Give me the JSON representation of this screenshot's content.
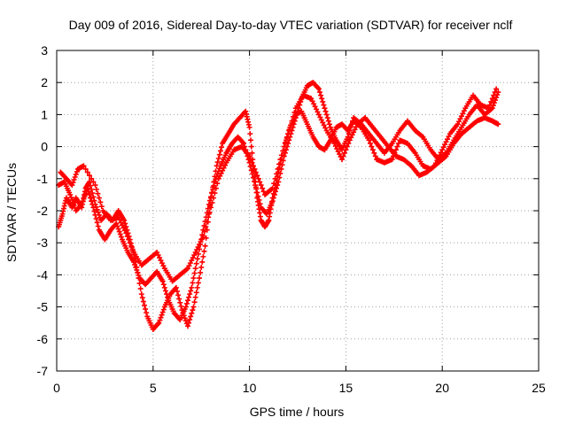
{
  "chart_data": {
    "type": "scatter",
    "title": "Day 009 of 2016, Sidereal Day-to-day VTEC variation (SDTVAR) for receiver nclf",
    "xlabel": "GPS time / hours",
    "ylabel": "SDTVAR / TECUs",
    "xlim": [
      0,
      25
    ],
    "ylim": [
      -7,
      3
    ],
    "xticks": [
      0,
      5,
      10,
      15,
      20,
      25
    ],
    "yticks": [
      -7,
      -6,
      -5,
      -4,
      -3,
      -2,
      -1,
      0,
      1,
      2,
      3
    ],
    "grid": true,
    "marker": "+",
    "colors": {
      "series": "#ff0000",
      "grid": "#a0a0a0",
      "axis": "#000000"
    },
    "series": [
      {
        "points": [
          [
            0.1,
            -2.5
          ],
          [
            0.3,
            -2.1
          ],
          [
            0.5,
            -1.6
          ],
          [
            0.8,
            -1.9
          ],
          [
            1.0,
            -1.6
          ],
          [
            1.3,
            -1.9
          ],
          [
            1.5,
            -1.3
          ],
          [
            1.7,
            -1.1
          ],
          [
            2.0,
            -1.8
          ],
          [
            2.3,
            -2.3
          ],
          [
            2.6,
            -2.1
          ],
          [
            2.9,
            -2.3
          ],
          [
            3.2,
            -2.0
          ],
          [
            3.5,
            -2.3
          ],
          [
            3.8,
            -2.9
          ],
          [
            4.1,
            -3.6
          ],
          [
            4.4,
            -4.6
          ],
          [
            4.7,
            -5.3
          ],
          [
            5.0,
            -5.7
          ],
          [
            5.3,
            -5.5
          ],
          [
            5.6,
            -5.0
          ],
          [
            5.9,
            -4.6
          ],
          [
            6.2,
            -4.4
          ],
          [
            6.5,
            -5.1
          ],
          [
            6.8,
            -5.6
          ],
          [
            7.1,
            -5.0
          ],
          [
            7.4,
            -4.1
          ],
          [
            7.7,
            -3.1
          ],
          [
            8.0,
            -1.6
          ],
          [
            8.3,
            -0.6
          ],
          [
            8.6,
            0.1
          ],
          [
            8.9,
            0.4
          ],
          [
            9.2,
            0.7
          ],
          [
            9.5,
            0.9
          ],
          [
            9.8,
            1.1
          ],
          [
            10.0,
            0.6
          ],
          [
            10.2,
            -0.6
          ],
          [
            10.4,
            -1.6
          ],
          [
            10.6,
            -2.3
          ],
          [
            10.8,
            -2.5
          ],
          [
            11.0,
            -2.3
          ],
          [
            11.2,
            -1.6
          ],
          [
            11.5,
            -0.8
          ],
          [
            11.8,
            0.0
          ],
          [
            12.1,
            0.6
          ],
          [
            12.4,
            1.0
          ],
          [
            12.7,
            1.1
          ],
          [
            13.0,
            0.7
          ],
          [
            13.3,
            0.3
          ],
          [
            13.6,
            0.0
          ],
          [
            13.9,
            -0.1
          ],
          [
            14.2,
            0.2
          ],
          [
            14.5,
            0.6
          ],
          [
            14.8,
            0.7
          ],
          [
            15.1,
            0.5
          ],
          [
            15.4,
            0.8
          ],
          [
            15.8,
            0.6
          ],
          [
            16.2,
            0.2
          ],
          [
            16.6,
            -0.4
          ],
          [
            17.0,
            -0.5
          ],
          [
            17.4,
            -0.4
          ],
          [
            17.8,
            0.2
          ],
          [
            18.2,
            0.1
          ],
          [
            18.6,
            -0.2
          ],
          [
            19.0,
            -0.6
          ],
          [
            19.4,
            -0.7
          ],
          [
            19.8,
            -0.5
          ],
          [
            20.2,
            -0.3
          ],
          [
            20.6,
            0.1
          ],
          [
            21.0,
            0.4
          ],
          [
            21.4,
            0.6
          ],
          [
            21.8,
            0.8
          ],
          [
            22.2,
            0.9
          ],
          [
            22.6,
            0.8
          ],
          [
            22.9,
            0.7
          ]
        ]
      },
      {
        "points": [
          [
            0.1,
            -1.2
          ],
          [
            0.4,
            -1.1
          ],
          [
            0.7,
            -1.5
          ],
          [
            1.0,
            -2.0
          ],
          [
            1.3,
            -1.8
          ],
          [
            1.6,
            -1.3
          ],
          [
            1.9,
            -1.9
          ],
          [
            2.2,
            -2.6
          ],
          [
            2.5,
            -2.9
          ],
          [
            2.8,
            -2.6
          ],
          [
            3.1,
            -2.4
          ],
          [
            3.4,
            -2.9
          ],
          [
            3.7,
            -3.3
          ],
          [
            4.0,
            -3.6
          ],
          [
            4.3,
            -4.1
          ],
          [
            4.6,
            -4.3
          ],
          [
            4.9,
            -4.1
          ],
          [
            5.2,
            -3.9
          ],
          [
            5.5,
            -4.2
          ],
          [
            5.8,
            -4.8
          ],
          [
            6.1,
            -5.2
          ],
          [
            6.4,
            -5.4
          ],
          [
            6.7,
            -5.0
          ],
          [
            7.0,
            -4.4
          ],
          [
            7.3,
            -3.5
          ],
          [
            7.6,
            -2.6
          ],
          [
            7.9,
            -1.8
          ],
          [
            8.2,
            -1.1
          ],
          [
            8.5,
            -0.6
          ],
          [
            8.8,
            -0.2
          ],
          [
            9.1,
            0.1
          ],
          [
            9.4,
            0.3
          ],
          [
            9.7,
            0.1
          ],
          [
            10.0,
            -0.5
          ],
          [
            10.3,
            -1.2
          ],
          [
            10.6,
            -1.9
          ],
          [
            10.9,
            -2.1
          ],
          [
            11.2,
            -1.7
          ],
          [
            11.5,
            -1.1
          ],
          [
            11.8,
            -0.3
          ],
          [
            12.1,
            0.3
          ],
          [
            12.4,
            0.9
          ],
          [
            12.7,
            1.5
          ],
          [
            13.0,
            1.9
          ],
          [
            13.3,
            2.0
          ],
          [
            13.6,
            1.8
          ],
          [
            13.9,
            1.2
          ],
          [
            14.2,
            0.6
          ],
          [
            14.5,
            0.2
          ],
          [
            14.8,
            -0.1
          ],
          [
            15.1,
            0.3
          ],
          [
            15.4,
            0.9
          ],
          [
            15.8,
            0.7
          ],
          [
            16.2,
            0.4
          ],
          [
            16.6,
            0.1
          ],
          [
            17.0,
            -0.2
          ],
          [
            17.4,
            0.1
          ],
          [
            17.8,
            0.5
          ],
          [
            18.2,
            0.8
          ],
          [
            18.6,
            0.5
          ],
          [
            19.0,
            0.3
          ],
          [
            19.4,
            -0.1
          ],
          [
            19.8,
            -0.4
          ],
          [
            20.2,
            -0.2
          ],
          [
            20.6,
            0.2
          ],
          [
            21.0,
            0.6
          ],
          [
            21.4,
            1.0
          ],
          [
            21.8,
            1.3
          ],
          [
            22.2,
            1.0
          ],
          [
            22.6,
            1.2
          ],
          [
            22.9,
            1.7
          ]
        ]
      },
      {
        "points": [
          [
            0.2,
            -0.8
          ],
          [
            0.5,
            -1.0
          ],
          [
            0.8,
            -1.2
          ],
          [
            1.1,
            -0.7
          ],
          [
            1.4,
            -0.6
          ],
          [
            2.0,
            -1.2
          ],
          [
            2.4,
            -2.0
          ],
          [
            2.8,
            -2.3
          ],
          [
            3.2,
            -2.2
          ],
          [
            3.6,
            -2.7
          ],
          [
            4.0,
            -3.3
          ],
          [
            4.4,
            -3.7
          ],
          [
            4.8,
            -3.5
          ],
          [
            5.2,
            -3.3
          ],
          [
            5.6,
            -3.8
          ],
          [
            6.0,
            -4.2
          ],
          [
            6.4,
            -4.0
          ],
          [
            6.8,
            -3.8
          ],
          [
            7.2,
            -3.3
          ],
          [
            7.6,
            -2.8
          ],
          [
            8.0,
            -1.9
          ],
          [
            8.4,
            -1.0
          ],
          [
            8.8,
            -0.5
          ],
          [
            9.2,
            -0.1
          ],
          [
            9.6,
            0.0
          ],
          [
            10.0,
            -0.3
          ],
          [
            10.4,
            -0.9
          ],
          [
            10.8,
            -1.5
          ],
          [
            11.2,
            -1.3
          ],
          [
            11.6,
            -0.4
          ],
          [
            12.0,
            0.4
          ],
          [
            12.4,
            1.2
          ],
          [
            12.8,
            1.6
          ],
          [
            13.2,
            1.5
          ],
          [
            13.6,
            1.0
          ],
          [
            14.0,
            0.5
          ],
          [
            14.4,
            0.1
          ],
          [
            14.8,
            -0.4
          ],
          [
            15.2,
            0.2
          ],
          [
            15.6,
            0.7
          ],
          [
            16.0,
            0.9
          ],
          [
            16.4,
            0.6
          ],
          [
            16.8,
            0.3
          ],
          [
            17.2,
            0.0
          ],
          [
            17.6,
            -0.3
          ],
          [
            18.0,
            -0.4
          ],
          [
            18.4,
            -0.6
          ],
          [
            18.8,
            -0.9
          ],
          [
            19.2,
            -0.8
          ],
          [
            19.6,
            -0.6
          ],
          [
            20.0,
            -0.1
          ],
          [
            20.4,
            0.4
          ],
          [
            20.8,
            0.7
          ],
          [
            21.2,
            1.2
          ],
          [
            21.6,
            1.6
          ],
          [
            22.0,
            1.3
          ],
          [
            22.4,
            1.2
          ],
          [
            22.8,
            1.8
          ]
        ]
      }
    ]
  }
}
